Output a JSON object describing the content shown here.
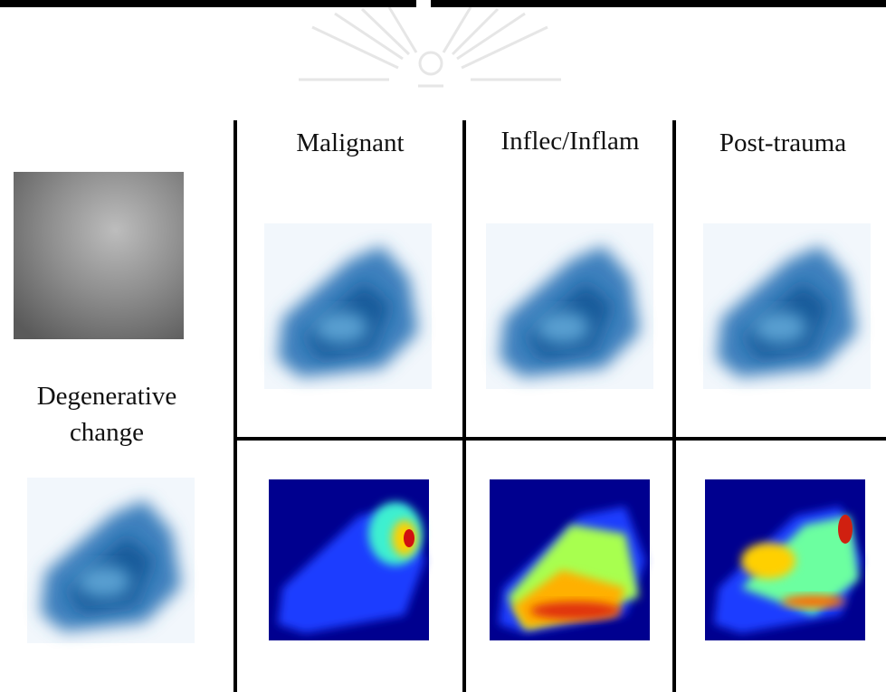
{
  "header": {
    "columns": [
      "Malignant",
      "Inflec/Inflam",
      "Post-trauma"
    ]
  },
  "row_label": {
    "lines": [
      "Degenerative",
      "change"
    ]
  }
}
